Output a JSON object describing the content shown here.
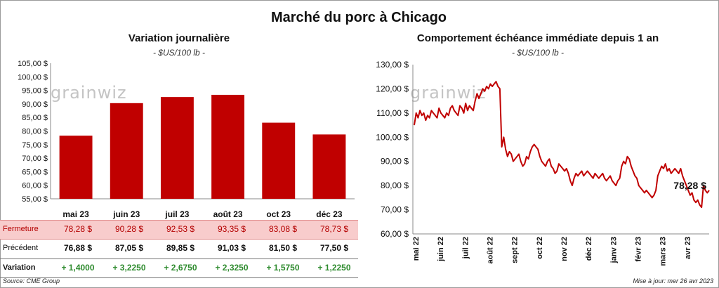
{
  "main_title": "Marché du porc à Chicago",
  "watermark": "grainwiz",
  "left_chart": {
    "title": "Variation  journalière",
    "subtitle": "- $US/100 lb -",
    "chart_data": {
      "type": "bar",
      "categories": [
        "mai 23",
        "juin 23",
        "juil 23",
        "août 23",
        "oct 23",
        "déc 23"
      ],
      "values": [
        78.28,
        90.28,
        92.53,
        93.35,
        83.08,
        78.73
      ],
      "ylim": [
        55,
        105
      ],
      "yticks": [
        "55,00 $",
        "60,00 $",
        "65,00 $",
        "70,00 $",
        "75,00 $",
        "80,00 $",
        "85,00 $",
        "90,00 $",
        "95,00 $",
        "100,00 $",
        "105,00 $"
      ],
      "bar_color": "#c00000"
    }
  },
  "table": {
    "labels": {
      "close": "Fermeture",
      "previous": "Précédent",
      "variation": "Variation"
    },
    "close": [
      "78,28  $",
      "90,28  $",
      "92,53  $",
      "93,35  $",
      "83,08  $",
      "78,73  $"
    ],
    "previous": [
      "76,88  $",
      "87,05  $",
      "89,85  $",
      "91,03  $",
      "81,50  $",
      "77,50  $"
    ],
    "variation": [
      "+ 1,4000",
      "+ 3,2250",
      "+ 2,6750",
      "+ 2,3250",
      "+ 1,5750",
      "+ 1,2250"
    ]
  },
  "right_chart": {
    "title": "Comportement  échéance immédiate depuis 1 an",
    "subtitle": "- $US/100 lb -",
    "chart_data": {
      "type": "line",
      "x_labels": [
        "mai 22",
        "juin 22",
        "juil 22",
        "août 22",
        "sept 22",
        "oct 22",
        "nov 22",
        "déc 22",
        "janv 23",
        "févr 23",
        "mars 23",
        "avr 23"
      ],
      "ylim": [
        60,
        130
      ],
      "yticks": [
        "60,00 $",
        "70,00 $",
        "80,00 $",
        "90,00 $",
        "100,00 $",
        "110,00 $",
        "120,00 $",
        "130,00 $"
      ],
      "last_label": "78,28 $",
      "line_color": "#c00000",
      "series": [
        {
          "name": "Échéance immédiate",
          "values": [
            105,
            110,
            108,
            111,
            109,
            110,
            107,
            109,
            108,
            111,
            110,
            109,
            108,
            112,
            110,
            109,
            108,
            110,
            109,
            112,
            113,
            111,
            110,
            109,
            113,
            112,
            110,
            114,
            111,
            113,
            112,
            111,
            115,
            118,
            116,
            118,
            120,
            119,
            121,
            120,
            122,
            121,
            122,
            123,
            121,
            120,
            96,
            100,
            95,
            92,
            94,
            93,
            90,
            91,
            92,
            93,
            90,
            88,
            89,
            92,
            91,
            94,
            96,
            97,
            96,
            95,
            92,
            90,
            89,
            88,
            90,
            91,
            88,
            87,
            85,
            86,
            89,
            88,
            87,
            86,
            87,
            85,
            82,
            80,
            83,
            85,
            84,
            85,
            86,
            84,
            85,
            86,
            85,
            84,
            83,
            85,
            84,
            83,
            84,
            85,
            83,
            82,
            83,
            84,
            82,
            81,
            80,
            82,
            83,
            88,
            90,
            89,
            92,
            91,
            88,
            86,
            84,
            83,
            80,
            79,
            78,
            77,
            78,
            77,
            76,
            75,
            76,
            78,
            84,
            86,
            88,
            87,
            89,
            86,
            87,
            85,
            86,
            87,
            86,
            85,
            87,
            84,
            82,
            80,
            78,
            76,
            77,
            74,
            73,
            74,
            72,
            71,
            80,
            78,
            77,
            78
          ]
        }
      ]
    }
  },
  "footer": {
    "source": "Source: CME Group",
    "updated": "Mise à jour: mer 26 avr 2023"
  }
}
